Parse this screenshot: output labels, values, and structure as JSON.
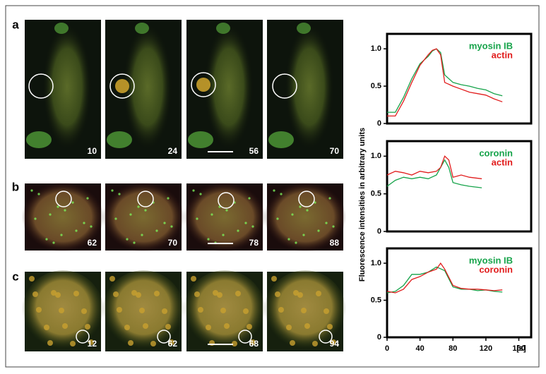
{
  "panels": [
    {
      "label": "a",
      "frames": [
        "10",
        "24",
        "56",
        "70"
      ]
    },
    {
      "label": "b",
      "frames": [
        "62",
        "70",
        "78",
        "88"
      ]
    },
    {
      "label": "c",
      "frames": [
        "12",
        "62",
        "68",
        "94"
      ]
    }
  ],
  "ylabel": "Fluorescence intensities in arbitrary units",
  "chart_data": [
    {
      "type": "line",
      "xlim": [
        0,
        175
      ],
      "ylim": [
        0,
        1.2
      ],
      "yticks": [
        0,
        0.5,
        {
          "value": 1,
          "label": "1.0"
        }
      ],
      "series": [
        {
          "name": "myosin IB",
          "color": "#16a34a",
          "x": [
            0,
            10,
            20,
            30,
            40,
            50,
            55,
            60,
            65,
            70,
            80,
            90,
            100,
            110,
            120,
            130,
            140
          ],
          "values": [
            0.15,
            0.15,
            0.35,
            0.6,
            0.8,
            0.9,
            0.97,
            1.0,
            0.95,
            0.65,
            0.55,
            0.52,
            0.5,
            0.47,
            0.45,
            0.4,
            0.37
          ]
        },
        {
          "name": "actin",
          "color": "#e11d1d",
          "x": [
            0,
            10,
            20,
            30,
            40,
            50,
            55,
            60,
            65,
            70,
            80,
            90,
            100,
            110,
            120,
            130,
            140
          ],
          "values": [
            0.1,
            0.1,
            0.3,
            0.55,
            0.78,
            0.92,
            0.98,
            1.0,
            0.92,
            0.55,
            0.5,
            0.46,
            0.42,
            0.4,
            0.38,
            0.33,
            0.29
          ]
        }
      ]
    },
    {
      "type": "line",
      "xlim": [
        0,
        175
      ],
      "ylim": [
        0,
        1.2
      ],
      "yticks": [
        0,
        0.5,
        {
          "value": 1,
          "label": "1.0"
        }
      ],
      "series": [
        {
          "name": "coronin",
          "color": "#16a34a",
          "x": [
            0,
            10,
            20,
            30,
            40,
            50,
            60,
            70,
            75,
            80,
            90,
            100,
            115
          ],
          "values": [
            0.6,
            0.68,
            0.72,
            0.7,
            0.72,
            0.7,
            0.75,
            0.95,
            0.85,
            0.65,
            0.62,
            0.6,
            0.58
          ]
        },
        {
          "name": "actin",
          "color": "#e11d1d",
          "x": [
            0,
            10,
            20,
            30,
            40,
            50,
            60,
            65,
            70,
            75,
            80,
            90,
            100,
            115
          ],
          "values": [
            0.75,
            0.8,
            0.78,
            0.75,
            0.8,
            0.78,
            0.8,
            0.85,
            1.0,
            0.95,
            0.72,
            0.75,
            0.72,
            0.7
          ]
        }
      ]
    },
    {
      "type": "line",
      "xlim": [
        0,
        175
      ],
      "ylim": [
        0,
        1.2
      ],
      "yticks": [
        0,
        0.5,
        {
          "value": 1,
          "label": "1.0"
        }
      ],
      "xticks": [
        0,
        40,
        80,
        120,
        160
      ],
      "xlabel": "[s]",
      "series": [
        {
          "name": "myosin IB",
          "color": "#16a34a",
          "x": [
            0,
            10,
            20,
            30,
            40,
            50,
            60,
            70,
            80,
            90,
            100,
            110,
            120,
            130,
            140
          ],
          "values": [
            0.6,
            0.62,
            0.7,
            0.85,
            0.85,
            0.88,
            0.95,
            0.9,
            0.68,
            0.65,
            0.65,
            0.63,
            0.64,
            0.62,
            0.61
          ]
        },
        {
          "name": "coronin",
          "color": "#e11d1d",
          "x": [
            0,
            10,
            20,
            30,
            40,
            50,
            60,
            65,
            70,
            80,
            90,
            100,
            110,
            120,
            130,
            140
          ],
          "values": [
            0.62,
            0.6,
            0.65,
            0.78,
            0.82,
            0.88,
            0.92,
            1.0,
            0.92,
            0.7,
            0.66,
            0.65,
            0.65,
            0.64,
            0.63,
            0.64
          ]
        }
      ]
    }
  ]
}
